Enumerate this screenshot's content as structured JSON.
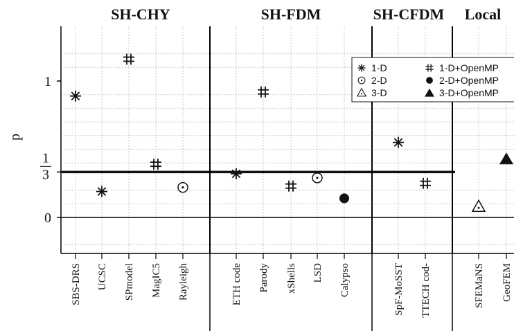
{
  "chart_data": {
    "type": "scatter",
    "ylabel": "p",
    "ylim": [
      -0.2,
      1.1
    ],
    "group_labels": [
      "SH-CHY",
      "SH-FDM",
      "SH-CFDM",
      "Local"
    ],
    "groups": [
      {
        "name": "SH-CHY",
        "codes": [
          "SBS-DRS",
          "UCSC",
          "SPmodel",
          "MagIC5",
          "Rayleigh"
        ]
      },
      {
        "name": "SH-FDM",
        "codes": [
          "ETH code",
          "Parody",
          "xShells",
          "LSD",
          "Calypso"
        ]
      },
      {
        "name": "SH-CFDM",
        "codes": [
          "SpF-MoSST",
          "TTECH cod-"
        ]
      },
      {
        "name": "Local",
        "codes": [
          "SFEMaNS",
          "GeoFEM"
        ]
      }
    ],
    "categories": [
      "SBS-DRS",
      "UCSC",
      "SPmodel",
      "MagIC5",
      "Rayleigh",
      "ETH code",
      "Parody",
      "xShells",
      "LSD",
      "Calypso",
      "SpF-MoSST",
      "TTECH cod-",
      "SFEMaNS",
      "GeoFEM"
    ],
    "yticks": [
      {
        "value": 0,
        "label": "0"
      },
      {
        "value": 0.3333,
        "label": "1/3",
        "num": "1",
        "den": "3"
      },
      {
        "value": 1,
        "label": "1"
      }
    ],
    "reference_line": 0.3333,
    "points": [
      {
        "code": "SBS-DRS",
        "p": 0.89,
        "series": "1-D"
      },
      {
        "code": "UCSC",
        "p": 0.19,
        "series": "1-D"
      },
      {
        "code": "SPmodel",
        "p": 1.16,
        "series": "1-D+OpenMP"
      },
      {
        "code": "MagIC5",
        "p": 0.39,
        "series": "1-D+OpenMP"
      },
      {
        "code": "Rayleigh",
        "p": 0.22,
        "series": "2-D"
      },
      {
        "code": "ETH code",
        "p": 0.32,
        "series": "1-D"
      },
      {
        "code": "Parody",
        "p": 0.92,
        "series": "1-D+OpenMP"
      },
      {
        "code": "xShells",
        "p": 0.23,
        "series": "1-D+OpenMP"
      },
      {
        "code": "LSD",
        "p": 0.29,
        "series": "2-D"
      },
      {
        "code": "Calypso",
        "p": 0.14,
        "series": "2-D+OpenMP"
      },
      {
        "code": "SpF-MoSST",
        "p": 0.55,
        "series": "1-D"
      },
      {
        "code": "TTECH cod-",
        "p": 0.25,
        "series": "1-D+OpenMP"
      },
      {
        "code": "SFEMaNS",
        "p": 0.08,
        "series": "3-D"
      },
      {
        "code": "GeoFEM",
        "p": 0.43,
        "series": "3-D+OpenMP"
      }
    ],
    "legend": [
      {
        "label": "1-D",
        "symbol": "asterisk"
      },
      {
        "label": "1-D+OpenMP",
        "symbol": "hash"
      },
      {
        "label": "2-D",
        "symbol": "dotted-circle"
      },
      {
        "label": "2-D+OpenMP",
        "symbol": "filled-circle"
      },
      {
        "label": "3-D",
        "symbol": "dotted-triangle"
      },
      {
        "label": "3-D+OpenMP",
        "symbol": "filled-triangle"
      }
    ],
    "legend_position": "top-right",
    "grid": true
  }
}
